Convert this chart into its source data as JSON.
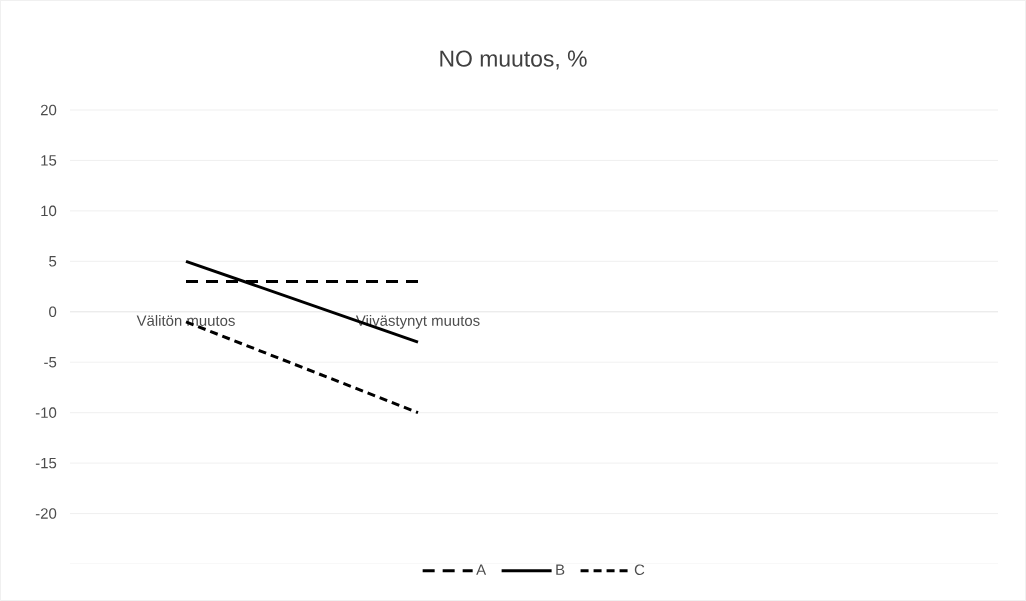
{
  "chart_data": {
    "type": "line",
    "title": "NO muutos, %",
    "categories": [
      "Välitön muutos",
      "Viivästynyt muutos",
      null,
      null
    ],
    "series": [
      {
        "name": "A",
        "color": "#000000",
        "values": [
          3,
          3,
          null,
          null
        ],
        "line_style": "dashed"
      },
      {
        "name": "B",
        "color": "#000000",
        "values": [
          5,
          -3,
          null,
          null
        ],
        "line_style": "solid"
      },
      {
        "name": "C",
        "color": "#000000",
        "values": [
          -1,
          -10,
          null,
          null
        ],
        "line_style": "dotted"
      }
    ],
    "ylim": [
      -25,
      20
    ],
    "yticks": [
      -20,
      -15,
      -10,
      -5,
      0,
      5,
      10,
      15,
      20
    ],
    "grid": "y",
    "legend": "bottom",
    "marker": "none"
  }
}
